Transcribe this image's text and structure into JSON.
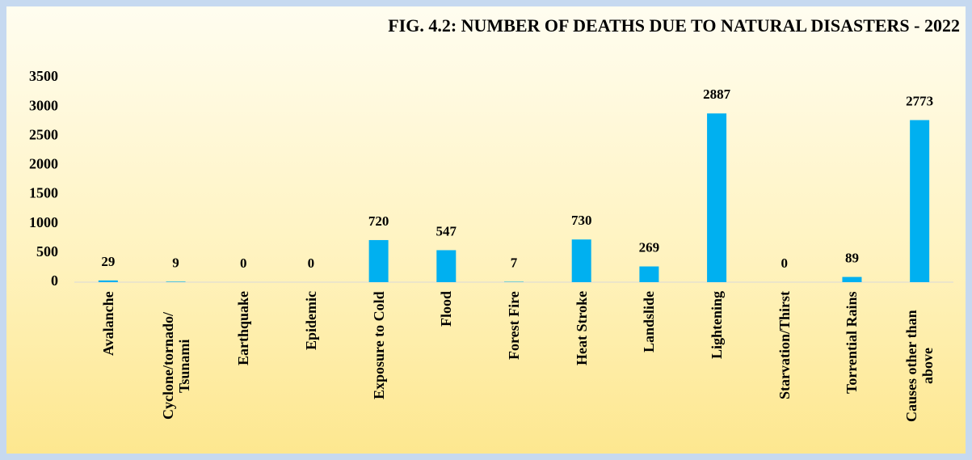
{
  "chart_data": {
    "type": "bar",
    "title": "FIG. 4.2: NUMBER OF DEATHS DUE TO NATURAL DISASTERS - 2022",
    "categories": [
      "Avalanche",
      "Cyclone/tornado/ Tsunami",
      "Earthquake",
      "Epidemic",
      "Exposure to Cold",
      "Flood",
      "Forest Fire",
      "Heat Stroke",
      "Landslide",
      "Lightening",
      "Starvation/Thirst",
      "Torrential Rains",
      "Causes other than above"
    ],
    "values": [
      29,
      9,
      0,
      0,
      720,
      547,
      7,
      730,
      269,
      2887,
      0,
      89,
      2773
    ],
    "color": "#00b0f0",
    "ylim": [
      0,
      3500
    ],
    "yticks": [
      0,
      500,
      1000,
      1500,
      2000,
      2500,
      3000,
      3500
    ],
    "grid": false
  }
}
